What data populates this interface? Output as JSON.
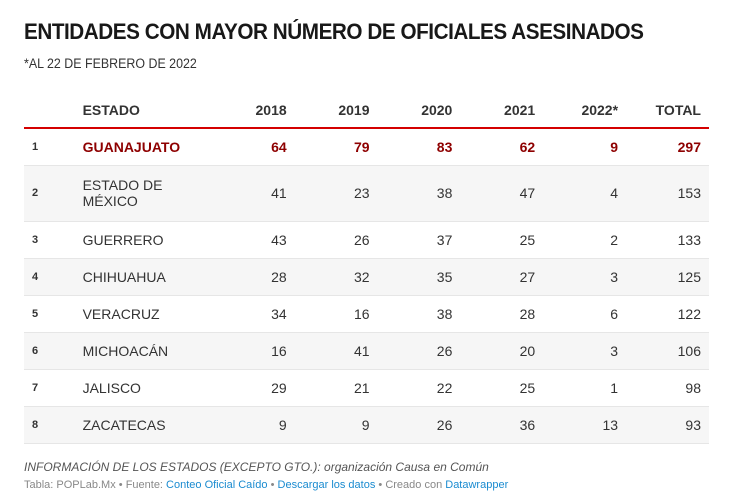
{
  "title": "ENTIDADES CON MAYOR NÚMERO DE OFICIALES ASESINADOS",
  "subtitle": "*AL 22 DE FEBRERO DE 2022",
  "highlight_color": "#8e0000",
  "header_rule_color": "#d40000",
  "chart_data": {
    "type": "table",
    "title": "ENTIDADES CON MAYOR NÚMERO DE OFICIALES ASESINADOS",
    "subtitle": "*AL 22 DE FEBRERO DE 2022",
    "columns": [
      "",
      "ESTADO",
      "2018",
      "2019",
      "2020",
      "2021",
      "2022*",
      "TOTAL"
    ],
    "rows": [
      {
        "rank": "1",
        "estado": "GUANAJUATO",
        "y2018": "64",
        "y2019": "79",
        "y2020": "83",
        "y2021": "62",
        "y2022": "9",
        "total": "297",
        "highlighted": true
      },
      {
        "rank": "2",
        "estado": "ESTADO DE MÉXICO",
        "y2018": "41",
        "y2019": "23",
        "y2020": "38",
        "y2021": "47",
        "y2022": "4",
        "total": "153"
      },
      {
        "rank": "3",
        "estado": "GUERRERO",
        "y2018": "43",
        "y2019": "26",
        "y2020": "37",
        "y2021": "25",
        "y2022": "2",
        "total": "133"
      },
      {
        "rank": "4",
        "estado": "CHIHUAHUA",
        "y2018": "28",
        "y2019": "32",
        "y2020": "35",
        "y2021": "27",
        "y2022": "3",
        "total": "125"
      },
      {
        "rank": "5",
        "estado": "VERACRUZ",
        "y2018": "34",
        "y2019": "16",
        "y2020": "38",
        "y2021": "28",
        "y2022": "6",
        "total": "122"
      },
      {
        "rank": "6",
        "estado": "MICHOACÁN",
        "y2018": "16",
        "y2019": "41",
        "y2020": "26",
        "y2021": "20",
        "y2022": "3",
        "total": "106"
      },
      {
        "rank": "7",
        "estado": "JALISCO",
        "y2018": "29",
        "y2019": "21",
        "y2020": "22",
        "y2021": "25",
        "y2022": "1",
        "total": "98"
      },
      {
        "rank": "8",
        "estado": "ZACATECAS",
        "y2018": "9",
        "y2019": "9",
        "y2020": "26",
        "y2021": "36",
        "y2022": "13",
        "total": "93"
      }
    ]
  },
  "notes": "INFORMACIÓN DE LOS ESTADOS (EXCEPTO GTO.): organización Causa en Común",
  "footer": {
    "table_label": "Tabla: POPLab.Mx",
    "separator": " • ",
    "source_label": "Fuente: ",
    "source_link": "Conteo Oficial Caído",
    "download_link": "Descargar los datos",
    "created_label": "Creado con ",
    "created_link": "Datawrapper"
  }
}
